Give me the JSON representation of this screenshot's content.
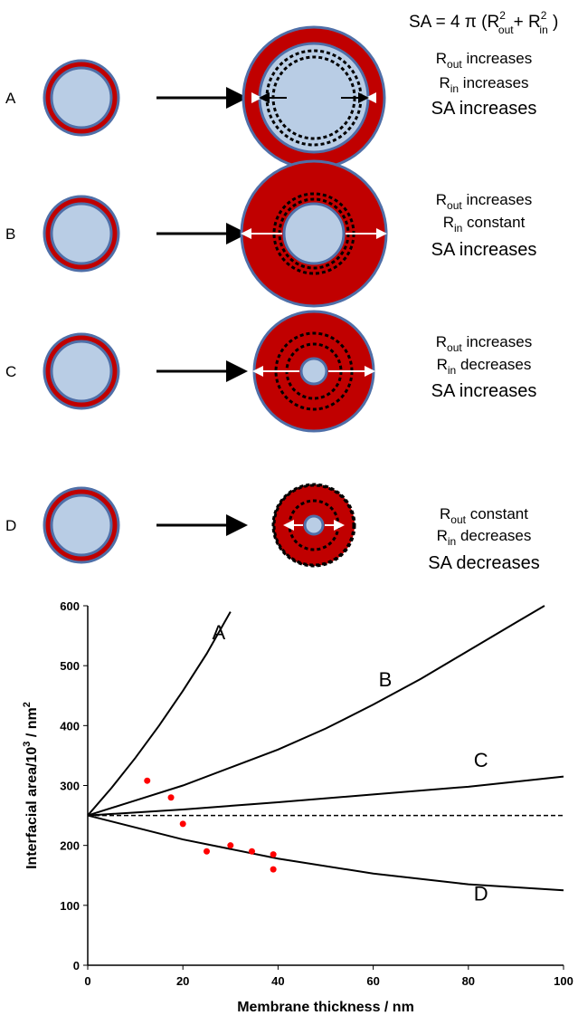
{
  "diagram": {
    "formula": {
      "lead": "SA = 4 π (R",
      "sup1": "2",
      "sub1": "out",
      "mid": "+ R",
      "sup2": "2",
      "sub2": "in",
      "tail": " )"
    },
    "rows": [
      {
        "label": "A",
        "lines": [
          {
            "main": "R",
            "sub": "out",
            "rest": " increases"
          },
          {
            "main": "R",
            "sub": "in",
            "rest": " increases"
          }
        ],
        "result": "SA increases"
      },
      {
        "label": "B",
        "lines": [
          {
            "main": "R",
            "sub": "out",
            "rest": " increases"
          },
          {
            "main": "R",
            "sub": "in",
            "rest": " constant"
          }
        ],
        "result": "SA increases"
      },
      {
        "label": "C",
        "lines": [
          {
            "main": "R",
            "sub": "out",
            "rest": " increases"
          },
          {
            "main": "R",
            "sub": "in",
            "rest": " decreases"
          }
        ],
        "result": "SA increases"
      },
      {
        "label": "D",
        "lines": [
          {
            "main": "R",
            "sub": "out",
            "rest": " constant"
          },
          {
            "main": "R",
            "sub": "in",
            "rest": " decreases"
          }
        ],
        "result": "SA decreases"
      }
    ]
  },
  "chart_data": {
    "type": "line",
    "x_label": "Membrane thickness / nm",
    "y_label": {
      "text": "Interfacial area/10",
      "sup1": "3",
      "unit": "  / nm",
      "sup2": "2"
    },
    "xlim": [
      0,
      100
    ],
    "ylim": [
      0,
      600
    ],
    "xticks": [
      0,
      20,
      40,
      60,
      80,
      100
    ],
    "yticks": [
      0,
      100,
      200,
      300,
      400,
      500,
      600
    ],
    "color": "#000000",
    "series": [
      {
        "name": "A",
        "x": [
          0,
          5,
          10,
          15,
          20,
          25,
          30
        ],
        "values": [
          250,
          296,
          346,
          400,
          458,
          520,
          590
        ]
      },
      {
        "name": "B",
        "x": [
          0,
          10,
          20,
          30,
          40,
          50,
          60,
          70,
          80,
          90,
          96
        ],
        "values": [
          250,
          275,
          300,
          330,
          360,
          395,
          435,
          478,
          525,
          572,
          600
        ]
      },
      {
        "name": "C",
        "x": [
          0,
          20,
          40,
          60,
          80,
          100
        ],
        "values": [
          250,
          260,
          272,
          285,
          298,
          315
        ]
      },
      {
        "name": "D",
        "x": [
          0,
          20,
          40,
          60,
          80,
          100
        ],
        "values": [
          250,
          210,
          178,
          153,
          135,
          125
        ]
      }
    ],
    "reference_line": 250,
    "points": {
      "color": "#ff0000",
      "x": [
        12.5,
        17.5,
        20,
        25,
        30,
        34.5,
        39,
        39
      ],
      "values": [
        308,
        280,
        236,
        190,
        200,
        190,
        185,
        160
      ]
    }
  }
}
